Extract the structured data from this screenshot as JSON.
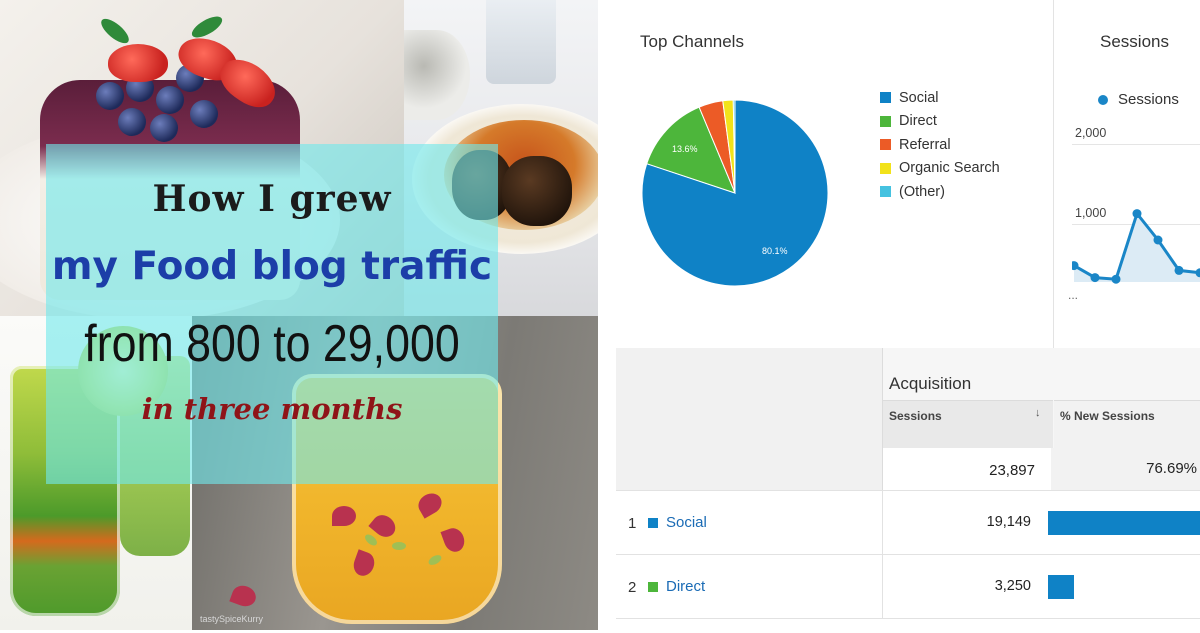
{
  "collage": {
    "title_line1": "How I grew",
    "title_line2": "my Food blog traffic",
    "title_line3": "from 800 to 29,000",
    "title_line4": "in three months",
    "watermark": "tastySpiceKurry"
  },
  "top_channels": {
    "title": "Top Channels",
    "legend": [
      {
        "label": "Social",
        "color": "#0f82c6"
      },
      {
        "label": "Direct",
        "color": "#4db63b"
      },
      {
        "label": "Referral",
        "color": "#ec5b26"
      },
      {
        "label": "Organic Search",
        "color": "#f2e21a"
      },
      {
        "label": "(Other)",
        "color": "#45c2e0"
      }
    ],
    "pie_labels": {
      "social": "80.1%",
      "direct": "13.6%"
    }
  },
  "sessions_chart": {
    "title": "Sessions",
    "legend": "Sessions",
    "ytick_high": "2,000",
    "ytick_mid": "1,000",
    "ellipsis": "...",
    "color": "#1a86c7"
  },
  "chart_data": [
    {
      "type": "pie",
      "title": "Top Channels",
      "categories": [
        "Social",
        "Direct",
        "Referral",
        "Organic Search",
        "(Other)"
      ],
      "values": [
        80.1,
        13.6,
        4.2,
        1.8,
        0.3
      ],
      "colors": [
        "#0f82c6",
        "#4db63b",
        "#ec5b26",
        "#f2e21a",
        "#45c2e0"
      ]
    },
    {
      "type": "area",
      "title": "Sessions",
      "series": [
        {
          "name": "Sessions",
          "values": [
            480,
            330,
            310,
            1130,
            800,
            420,
            390
          ]
        }
      ],
      "ylim": [
        0,
        2400
      ],
      "yticks": [
        1000,
        2000
      ]
    }
  ],
  "acquisition": {
    "title": "Acquisition",
    "col_sessions": "Sessions",
    "sort_icon": "↓",
    "col_new_sessions": "% New Sessions",
    "total_sessions": "23,897",
    "total_new_sessions": "76.69%",
    "rows": [
      {
        "rank": "1",
        "channel": "Social",
        "color": "#0f82c6",
        "sessions": "19,149",
        "share": 0.801
      },
      {
        "rank": "2",
        "channel": "Direct",
        "color": "#4db63b",
        "sessions": "3,250",
        "share": 0.136
      }
    ]
  }
}
